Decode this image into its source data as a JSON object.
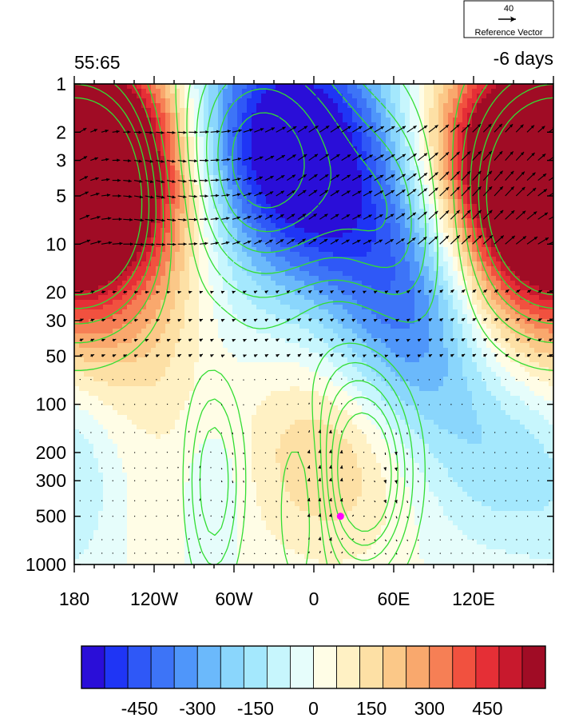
{
  "chart_data": {
    "type": "heatmap",
    "title_left": "55:65",
    "title_right": "-6 days",
    "xlabel": "",
    "ylabel": "",
    "x_ticks": [
      {
        "value": -180,
        "label": "180"
      },
      {
        "value": -120,
        "label": "120W"
      },
      {
        "value": -60,
        "label": "60W"
      },
      {
        "value": 0,
        "label": "0"
      },
      {
        "value": 60,
        "label": "60E"
      },
      {
        "value": 120,
        "label": "120E"
      }
    ],
    "xlim": [
      -180,
      180
    ],
    "y_scale": "log",
    "y_reversed": true,
    "ylim": [
      1000,
      1
    ],
    "y_ticks": [
      1,
      2,
      3,
      5,
      10,
      20,
      30,
      50,
      100,
      200,
      300,
      500,
      1000
    ],
    "marker": {
      "lon": 20,
      "pressure": 500,
      "color": "#ff00ff"
    },
    "reference_vector": {
      "magnitude": "40",
      "label": "Reference Vector"
    },
    "colorbar": {
      "levels": [
        -600,
        -540,
        -480,
        -420,
        -360,
        -300,
        -240,
        -180,
        -120,
        -60,
        0,
        60,
        120,
        180,
        240,
        300,
        360,
        420,
        480,
        540,
        600
      ],
      "tick_labels": [
        "-450",
        "-300",
        "-150",
        "0",
        "150",
        "300",
        "450"
      ],
      "tick_values": [
        -450,
        -300,
        -150,
        0,
        150,
        300,
        450
      ],
      "colors": [
        "#2a0ed8",
        "#1f35f5",
        "#2f58f7",
        "#3d74f7",
        "#4f96fa",
        "#6bb9fb",
        "#8ad6fc",
        "#a4e8fd",
        "#c7f6fd",
        "#e6fdfb",
        "#fffde6",
        "#fff1c4",
        "#fde0a5",
        "#fbc888",
        "#f9a86d",
        "#f67f55",
        "#f1513f",
        "#e52f36",
        "#c8192d",
        "#a00c25"
      ]
    },
    "field_blobs": [
      {
        "lon": -170,
        "p": 3,
        "value": 620,
        "slon": 55,
        "slp": 0.45
      },
      {
        "lon": -150,
        "p": 20,
        "value": 200,
        "slon": 60,
        "slp": 0.5
      },
      {
        "lon": 170,
        "p": 3,
        "value": 620,
        "slon": 55,
        "slp": 0.5
      },
      {
        "lon": 150,
        "p": 20,
        "value": 180,
        "slon": 40,
        "slp": 0.45
      },
      {
        "lon": -20,
        "p": 2,
        "value": -640,
        "slon": 55,
        "slp": 0.5
      },
      {
        "lon": 20,
        "p": 8,
        "value": -260,
        "slon": 60,
        "slp": 0.45
      },
      {
        "lon": 70,
        "p": 30,
        "value": -280,
        "slon": 40,
        "slp": 0.55
      },
      {
        "lon": 120,
        "p": 60,
        "value": -140,
        "slon": 50,
        "slp": 0.55
      },
      {
        "lon": -70,
        "p": 30,
        "value": -60,
        "slon": 30,
        "slp": 0.4
      },
      {
        "lon": 20,
        "p": 200,
        "value": 200,
        "slon": 45,
        "slp": 0.45
      },
      {
        "lon": -130,
        "p": 200,
        "value": 60,
        "slon": 60,
        "slp": 0.55
      },
      {
        "lon": -75,
        "p": 350,
        "value": -100,
        "slon": 18,
        "slp": 0.35
      },
      {
        "lon": -175,
        "p": 600,
        "value": -30,
        "slon": 18,
        "slp": 0.5
      },
      {
        "lon": 160,
        "p": 250,
        "value": -140,
        "slon": 45,
        "slp": 0.4
      }
    ],
    "contour_features": [
      {
        "lon": 40,
        "p": 300,
        "amp": 1,
        "slon": 20,
        "slp": 0.35
      },
      {
        "lon": 30,
        "p": 150,
        "amp": 0.6,
        "slon": 30,
        "slp": 0.6
      },
      {
        "lon": -75,
        "p": 300,
        "amp": 0.8,
        "slon": 14,
        "slp": 0.45
      },
      {
        "lon": -170,
        "p": 5,
        "amp": 1.2,
        "slon": 45,
        "slp": 0.5
      },
      {
        "lon": 175,
        "p": 5,
        "amp": 1.0,
        "slon": 45,
        "slp": 0.5
      },
      {
        "lon": -40,
        "p": 3,
        "amp": -1.4,
        "slon": 50,
        "slp": 0.55
      },
      {
        "lon": -10,
        "p": 400,
        "amp": -0.6,
        "slon": 12,
        "slp": 0.4
      },
      {
        "lon": 60,
        "p": 8,
        "amp": -0.7,
        "slon": 35,
        "slp": 0.5
      }
    ],
    "contour_levels": [
      -1.2,
      -1.0,
      -0.8,
      -0.6,
      -0.4,
      -0.2,
      0.2,
      0.4,
      0.6,
      0.8,
      1.0
    ],
    "contour_color": "#33dd33",
    "vector_rows_hpa": [
      1,
      2,
      3,
      4,
      5,
      7,
      10,
      20,
      30,
      40,
      50,
      70,
      100,
      150,
      200,
      250,
      300,
      400,
      500,
      700,
      850
    ]
  }
}
